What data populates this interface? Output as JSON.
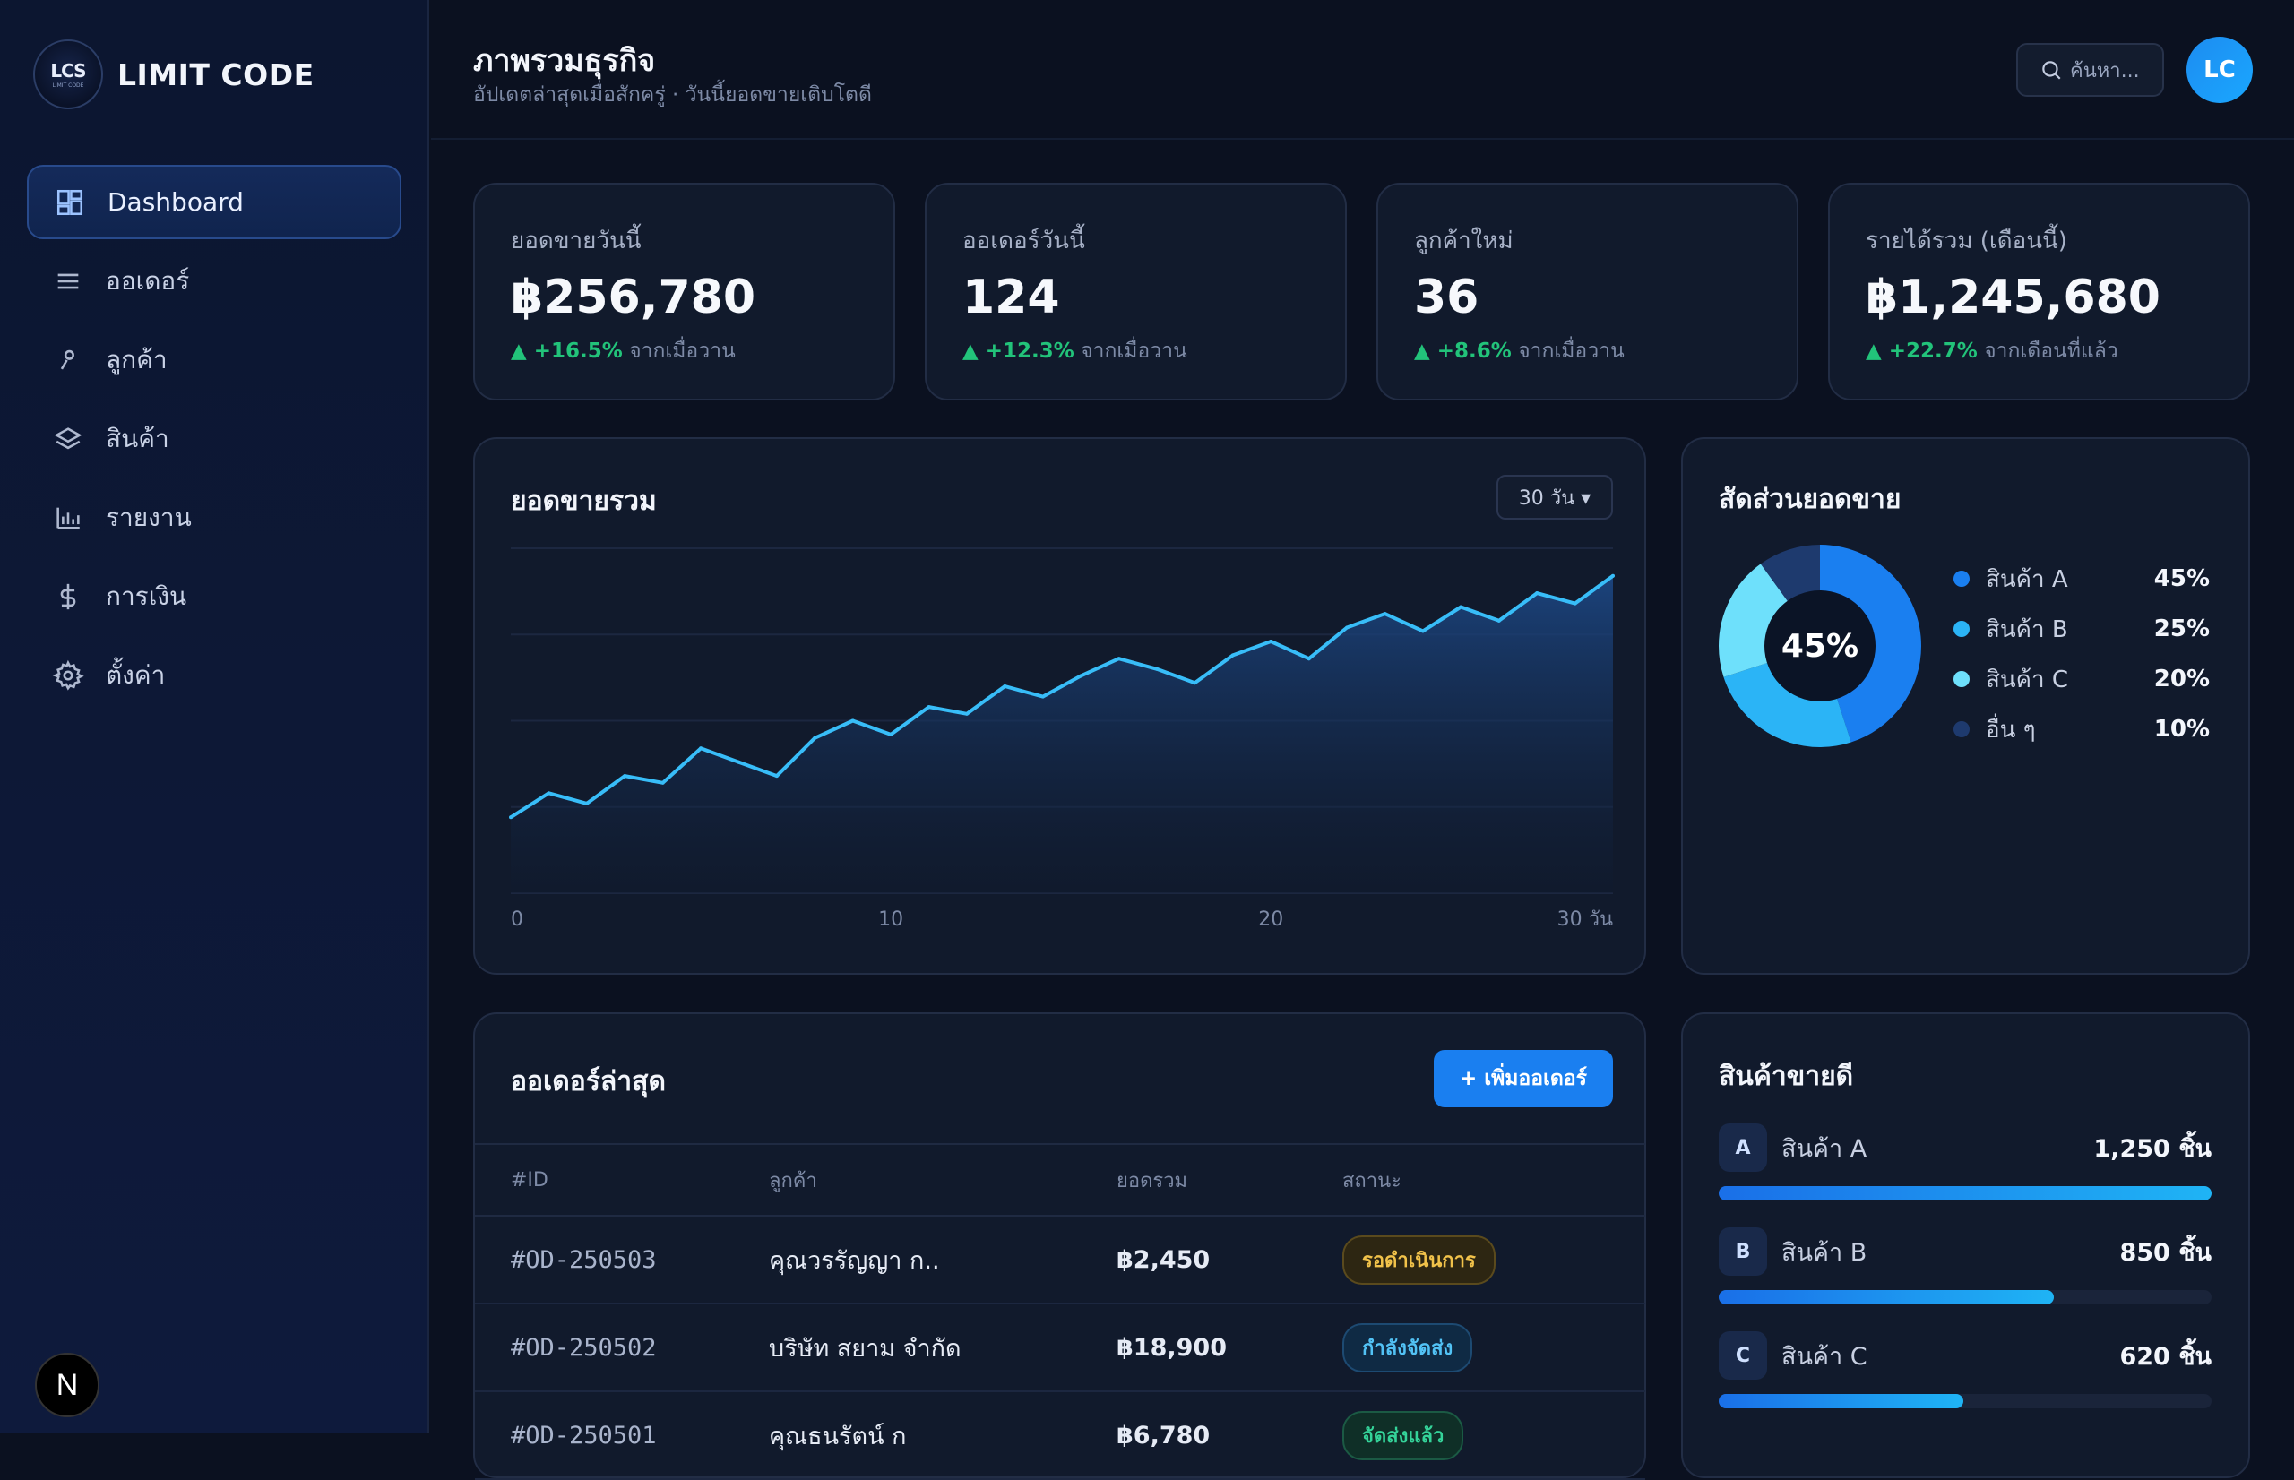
{
  "brand": {
    "logo_text": "LCS",
    "logo_subtext": "LIMIT CODE",
    "name": "LIMIT CODE"
  },
  "nav": [
    {
      "label": "Dashboard",
      "icon": "dashboard-icon",
      "active": true
    },
    {
      "label": "ออเดอร์",
      "icon": "menu-list-icon"
    },
    {
      "label": "ลูกค้า",
      "icon": "user-icon"
    },
    {
      "label": "สินค้า",
      "icon": "layers-icon"
    },
    {
      "label": "รายงาน",
      "icon": "bar-chart-icon"
    },
    {
      "label": "การเงิน",
      "icon": "baht-icon"
    },
    {
      "label": "ตั้งค่า",
      "icon": "gear-icon"
    }
  ],
  "next_badge": "N",
  "header": {
    "title": "ภาพรวมธุรกิจ",
    "subtitle": "อัปเดตล่าสุดเมื่อสักครู่ · วันนี้ยอดขายเติบโตดี",
    "search_placeholder": "ค้นหา...",
    "avatar": "LC"
  },
  "stats": [
    {
      "label": "ยอดขายวันนี้",
      "value": "฿256,780",
      "delta": "▲ +16.5%",
      "delta_note": " จากเมื่อวาน"
    },
    {
      "label": "ออเดอร์วันนี้",
      "value": "124",
      "delta": "▲ +12.3%",
      "delta_note": " จากเมื่อวาน"
    },
    {
      "label": "ลูกค้าใหม่",
      "value": "36",
      "delta": "▲ +8.6%",
      "delta_note": " จากเมื่อวาน"
    },
    {
      "label": "รายได้รวม (เดือนนี้)",
      "value": "฿1,245,680",
      "delta": "▲ +22.7%",
      "delta_note": " จากเดือนที่แล้ว"
    }
  ],
  "sales_card": {
    "title": "ยอดขายรวม",
    "range": "30 วัน ▾"
  },
  "chart_data": {
    "type": "area",
    "title": "ยอดขายรวม",
    "x_tick_labels": [
      "0",
      "10",
      "20",
      "30 วัน"
    ],
    "x": [
      0,
      1,
      2,
      3,
      4,
      5,
      6,
      7,
      8,
      9,
      10,
      11,
      12,
      13,
      14,
      15,
      16,
      17,
      18,
      19,
      20,
      21,
      22,
      23,
      24,
      25,
      26,
      27,
      28,
      29
    ],
    "values": [
      22,
      29,
      26,
      34,
      32,
      42,
      38,
      34,
      45,
      50,
      46,
      54,
      52,
      60,
      57,
      63,
      68,
      65,
      61,
      69,
      73,
      68,
      77,
      81,
      76,
      83,
      79,
      87,
      84,
      92
    ],
    "ylim": [
      0,
      100
    ],
    "grid": true,
    "color": "#38bdf8"
  },
  "share_card": {
    "title": "สัดส่วนยอดขาย",
    "center_label": "45%",
    "slices": [
      {
        "label": "สินค้า A",
        "pct": "45%",
        "value": 45,
        "color": "#1a7ff0"
      },
      {
        "label": "สินค้า B",
        "pct": "25%",
        "value": 25,
        "color": "#2bb4f6"
      },
      {
        "label": "สินค้า C",
        "pct": "20%",
        "value": 20,
        "color": "#6ee0fb"
      },
      {
        "label": "อื่น ๆ",
        "pct": "10%",
        "value": 10,
        "color": "#1e3a6e"
      }
    ]
  },
  "orders": {
    "title": "ออเดอร์ล่าสุด",
    "add_label": "+ เพิ่มออเดอร์",
    "columns": [
      "#ID",
      "ลูกค้า",
      "ยอดรวม",
      "สถานะ"
    ],
    "rows": [
      {
        "id": "#OD-250503",
        "customer": "คุณวรรัญญา ก..",
        "total": "฿2,450",
        "status": "รอดำเนินการ"
      },
      {
        "id": "#OD-250502",
        "customer": "บริษัท สยาม จำกัด",
        "total": "฿18,900",
        "status": "กำลังจัดส่ง"
      },
      {
        "id": "#OD-250501",
        "customer": "คุณธนรัตน์ ก",
        "total": "฿6,780",
        "status": "จัดส่งแล้ว"
      }
    ]
  },
  "best_sellers": {
    "title": "สินค้าขายดี",
    "items": [
      {
        "letter": "A",
        "name": "สินค้า A",
        "qty": "1,250 ชิ้น",
        "level": 1.0
      },
      {
        "letter": "B",
        "name": "สินค้า B",
        "qty": "850 ชิ้น",
        "level": 0.68
      },
      {
        "letter": "C",
        "name": "สินค้า C",
        "qty": "620 ชิ้น",
        "level": 0.496
      }
    ]
  }
}
